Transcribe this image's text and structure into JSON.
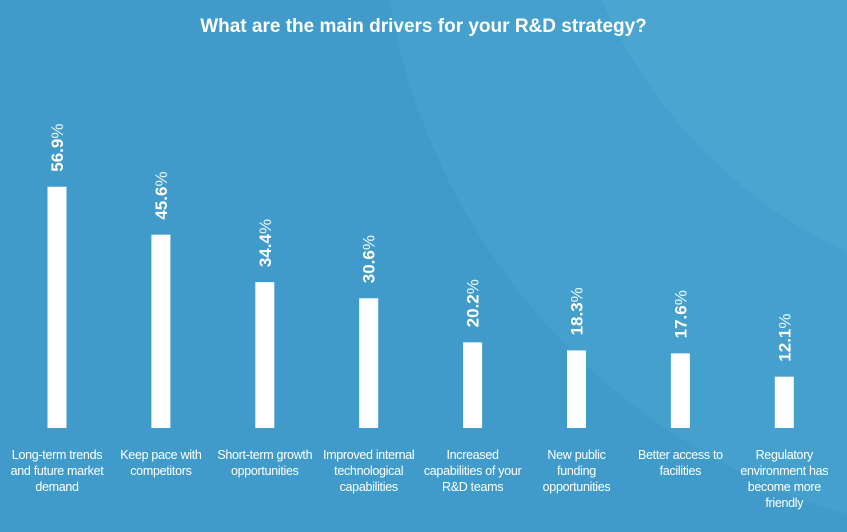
{
  "chart_data": {
    "type": "bar",
    "title": "What are the main drivers for your R&D strategy?",
    "categories": [
      "Long-term trends and future market demand",
      "Keep pace with competitors",
      "Short-term growth opportunities",
      "Improved internal technological capabilities",
      "Increased capabilities of your R&D teams",
      "New public funding opportunities",
      "Better access to facilities",
      "Regulatory environment has become more friendly"
    ],
    "values": [
      56.9,
      45.6,
      34.4,
      30.6,
      20.2,
      18.3,
      17.6,
      12.1
    ],
    "value_labels": [
      "56.9",
      "45.6",
      "34.4",
      "30.6",
      "20.2",
      "18.3",
      "17.6",
      "12.1"
    ],
    "unit": "%",
    "xlabel": "",
    "ylabel": "",
    "ylim": [
      0,
      60
    ],
    "grid": false,
    "colors": {
      "background": "#419bca",
      "bar": "#ffffff",
      "text": "#ffffff"
    }
  }
}
